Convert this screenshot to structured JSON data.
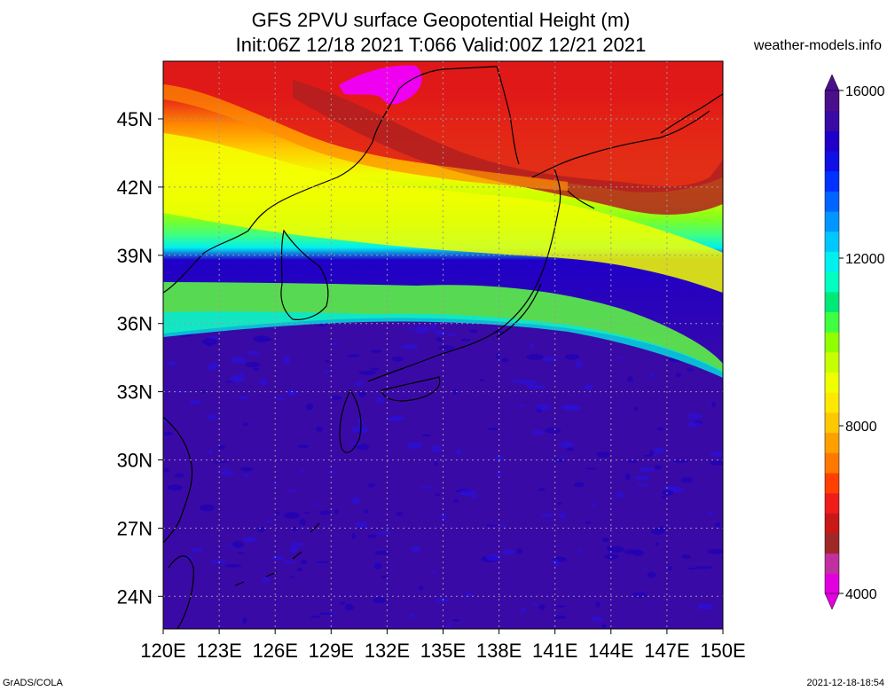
{
  "title_line1": "GFS 2PVU surface Geopotential Height (m)",
  "title_line2": "Init:06Z 12/18 2021 T:066 Valid:00Z 12/21 2021",
  "site": "weather-models.info",
  "footer_left": "GrADS/COLA",
  "footer_right": "2021-12-18-18:54",
  "lon_labels": [
    "120E",
    "123E",
    "126E",
    "129E",
    "132E",
    "135E",
    "138E",
    "141E",
    "144E",
    "147E",
    "150E"
  ],
  "lat_labels": [
    "45N",
    "42N",
    "39N",
    "36N",
    "33N",
    "30N",
    "27N",
    "24N"
  ],
  "colorbar": {
    "labels": [
      "16000",
      "12000",
      "8000",
      "4000"
    ],
    "colors": [
      "#e000e0",
      "#c030a0",
      "#a02828",
      "#c81818",
      "#f01c1c",
      "#ff4000",
      "#ff7800",
      "#ffa000",
      "#ffc800",
      "#ffe800",
      "#f0ff00",
      "#c8ff00",
      "#90ff00",
      "#40ff40",
      "#00e878",
      "#00ffc0",
      "#00f0f0",
      "#00c8ff",
      "#0096ff",
      "#0064ff",
      "#0032ff",
      "#1010e6",
      "#2000c8",
      "#3a0aa6",
      "#4b0f8c"
    ]
  },
  "colors": {
    "low": "#e000e0",
    "mid_red": "#e01818",
    "orange": "#ff8c00",
    "yellow": "#ffe800",
    "green": "#40ff40",
    "cyan": "#00f0f0",
    "blue": "#2000c8",
    "purple": "#4b0f8c"
  }
}
